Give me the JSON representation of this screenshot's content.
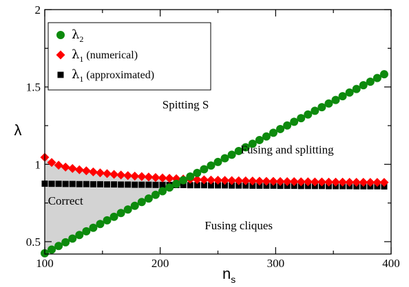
{
  "chart_data": {
    "type": "scatter",
    "ylabel": "λ",
    "xlabel": {
      "base": "n",
      "sub": "s"
    },
    "xlim": [
      100,
      400
    ],
    "ylim": [
      0.42,
      2.0
    ],
    "xticks": [
      100,
      200,
      300,
      400
    ],
    "yticks": [
      0.5,
      1,
      1.5,
      2
    ],
    "ytick_labels": [
      "0.5",
      "1",
      "1.5",
      "2"
    ],
    "xtick_labels": [
      "100",
      "200",
      "300",
      "400"
    ],
    "minor_x_step": 50,
    "minor_y_step": 0.25,
    "legend_position": "top-left",
    "series": [
      {
        "key": "lambda2",
        "legend": {
          "symbol": "λ",
          "sub": "2",
          "suffix": ""
        },
        "marker": "circle",
        "color": "#0d8a0d",
        "x": [
          100,
          106,
          112,
          118,
          124,
          130,
          136,
          142,
          148,
          154,
          160,
          166,
          172,
          178,
          184,
          190,
          196,
          202,
          208,
          214,
          220,
          226,
          232,
          238,
          244,
          250,
          256,
          262,
          268,
          274,
          280,
          286,
          292,
          298,
          304,
          310,
          316,
          322,
          328,
          334,
          340,
          346,
          352,
          358,
          364,
          370,
          376,
          382,
          388,
          394
        ],
        "y": [
          0.425,
          0.449,
          0.472,
          0.496,
          0.52,
          0.543,
          0.567,
          0.59,
          0.614,
          0.638,
          0.661,
          0.685,
          0.708,
          0.732,
          0.756,
          0.779,
          0.803,
          0.826,
          0.85,
          0.874,
          0.897,
          0.921,
          0.944,
          0.968,
          0.992,
          1.015,
          1.039,
          1.062,
          1.086,
          1.11,
          1.133,
          1.157,
          1.18,
          1.204,
          1.228,
          1.251,
          1.275,
          1.298,
          1.322,
          1.346,
          1.369,
          1.393,
          1.416,
          1.44,
          1.464,
          1.487,
          1.511,
          1.534,
          1.558,
          1.582
        ]
      },
      {
        "key": "lambda1_num",
        "legend": {
          "symbol": "λ",
          "sub": "1",
          "suffix": " (numerical)"
        },
        "marker": "diamond",
        "color": "#ff0000",
        "x": [
          100,
          106,
          112,
          118,
          124,
          130,
          136,
          142,
          148,
          154,
          160,
          166,
          172,
          178,
          184,
          190,
          196,
          202,
          208,
          214,
          220,
          226,
          232,
          238,
          244,
          250,
          256,
          262,
          268,
          274,
          280,
          286,
          292,
          298,
          304,
          310,
          316,
          322,
          328,
          334,
          340,
          346,
          352,
          358,
          364,
          370,
          376,
          382,
          388,
          394
        ],
        "y": [
          1.045,
          1.012,
          0.994,
          0.982,
          0.973,
          0.965,
          0.958,
          0.951,
          0.945,
          0.94,
          0.935,
          0.931,
          0.927,
          0.924,
          0.921,
          0.918,
          0.915,
          0.912,
          0.91,
          0.907,
          0.905,
          0.903,
          0.901,
          0.9,
          0.898,
          0.897,
          0.896,
          0.895,
          0.894,
          0.893,
          0.892,
          0.891,
          0.89,
          0.89,
          0.889,
          0.888,
          0.888,
          0.887,
          0.887,
          0.886,
          0.886,
          0.885,
          0.885,
          0.885,
          0.884,
          0.884,
          0.884,
          0.883,
          0.883,
          0.883
        ]
      },
      {
        "key": "lambda1_approx",
        "legend": {
          "symbol": "λ",
          "sub": "1",
          "suffix": " (approximated)"
        },
        "marker": "square",
        "color": "#000000",
        "x": [
          100,
          106,
          112,
          118,
          124,
          130,
          136,
          142,
          148,
          154,
          160,
          166,
          172,
          178,
          184,
          190,
          196,
          202,
          208,
          214,
          220,
          226,
          232,
          238,
          244,
          250,
          256,
          262,
          268,
          274,
          280,
          286,
          292,
          298,
          304,
          310,
          316,
          322,
          328,
          334,
          340,
          346,
          352,
          358,
          364,
          370,
          376,
          382,
          388,
          394
        ],
        "y": [
          0.875,
          0.874,
          0.874,
          0.873,
          0.873,
          0.872,
          0.872,
          0.871,
          0.871,
          0.87,
          0.87,
          0.869,
          0.869,
          0.868,
          0.868,
          0.868,
          0.867,
          0.867,
          0.866,
          0.866,
          0.866,
          0.865,
          0.865,
          0.865,
          0.864,
          0.864,
          0.864,
          0.863,
          0.863,
          0.863,
          0.862,
          0.862,
          0.862,
          0.862,
          0.861,
          0.861,
          0.861,
          0.86,
          0.86,
          0.86,
          0.86,
          0.859,
          0.859,
          0.859,
          0.859,
          0.858,
          0.858,
          0.858,
          0.858,
          0.857
        ]
      }
    ],
    "annotations": [
      {
        "text": "Spitting S",
        "x": 222,
        "y": 1.36
      },
      {
        "text": "Fusing and splitting",
        "x": 310,
        "y": 1.07
      },
      {
        "text": "Correct",
        "x": 118,
        "y": 0.74
      },
      {
        "text": "Fusing cliques",
        "x": 268,
        "y": 0.58
      }
    ],
    "shaded_region": {
      "color": "#d3d3d3",
      "between": [
        "lambda1_num",
        "lambda2"
      ]
    }
  }
}
